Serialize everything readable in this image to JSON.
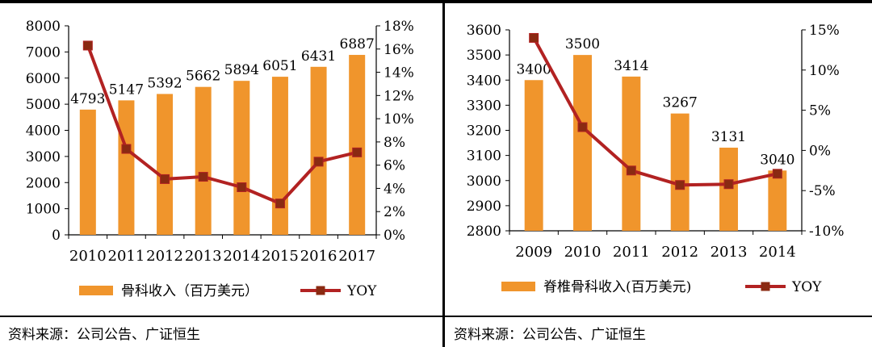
{
  "colors": {
    "bar": "#f0952c",
    "line": "#b22222",
    "marker": "#8a2a12"
  },
  "source_left": "资料来源：公司公告、广证恒生",
  "source_right": "资料来源：公司公告、广证恒生",
  "chart_data": [
    {
      "type": "bar",
      "categories": [
        "2010",
        "2011",
        "2012",
        "2013",
        "2014",
        "2015",
        "2016",
        "2017"
      ],
      "series": [
        {
          "name": "骨科收入（百万美元）",
          "type": "bar",
          "axis": "left",
          "values": [
            4793,
            5147,
            5392,
            5662,
            5894,
            6051,
            6431,
            6887
          ]
        },
        {
          "name": "YOY",
          "type": "line",
          "axis": "right",
          "values": [
            16.3,
            7.4,
            4.8,
            5.0,
            4.1,
            2.7,
            6.3,
            7.1
          ]
        }
      ],
      "ylim": [
        0,
        8000
      ],
      "yticks": [
        "0",
        "1000",
        "2000",
        "3000",
        "4000",
        "5000",
        "6000",
        "7000",
        "8000"
      ],
      "y2lim": [
        0,
        18
      ],
      "y2ticks": [
        "0%",
        "2%",
        "4%",
        "6%",
        "8%",
        "10%",
        "12%",
        "14%",
        "16%",
        "18%"
      ],
      "legend": "bottom"
    },
    {
      "type": "bar",
      "categories": [
        "2009",
        "2010",
        "2011",
        "2012",
        "2013",
        "2014"
      ],
      "series": [
        {
          "name": "脊椎骨科收入(百万美元)",
          "type": "bar",
          "axis": "left",
          "values": [
            3400,
            3500,
            3414,
            3267,
            3131,
            3040
          ]
        },
        {
          "name": "YOY",
          "type": "line",
          "axis": "right",
          "values": [
            14.0,
            2.9,
            -2.5,
            -4.3,
            -4.2,
            -2.9
          ]
        }
      ],
      "ylim": [
        2800,
        3600
      ],
      "yticks": [
        "2800",
        "2900",
        "3000",
        "3100",
        "3200",
        "3300",
        "3400",
        "3500",
        "3600"
      ],
      "y2lim": [
        -10,
        15
      ],
      "y2ticks": [
        "-10%",
        "-5%",
        "0%",
        "5%",
        "10%",
        "15%"
      ],
      "legend": "bottom"
    }
  ]
}
